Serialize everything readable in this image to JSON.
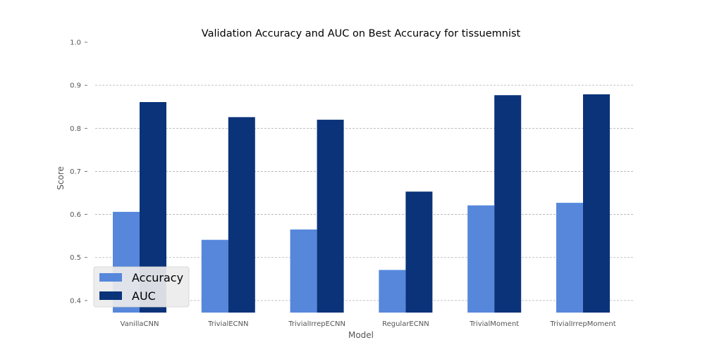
{
  "chart_data": {
    "type": "bar",
    "title": "Validation Accuracy and AUC on Best Accuracy for tissuemnist",
    "xlabel": "Model",
    "ylabel": "Score",
    "categories": [
      "VanillaCNN",
      "TrivialECNN",
      "TrivialIrrepECNN",
      "RegularECNN",
      "TrivialMoment",
      "TrivialIrrepMoment"
    ],
    "series": [
      {
        "name": "Accuracy",
        "color": "#5687db",
        "values": [
          0.606,
          0.541,
          0.565,
          0.471,
          0.621,
          0.627
        ]
      },
      {
        "name": "AUC",
        "color": "#0a337a",
        "values": [
          0.861,
          0.826,
          0.82,
          0.653,
          0.877,
          0.879
        ]
      }
    ],
    "ylim": [
      0.372,
      1.0
    ],
    "yticks": [
      "0.4",
      "0.5",
      "0.6",
      "0.7",
      "0.8",
      "0.9",
      "1.0"
    ],
    "grid": true,
    "legend_position": "lower-left"
  }
}
